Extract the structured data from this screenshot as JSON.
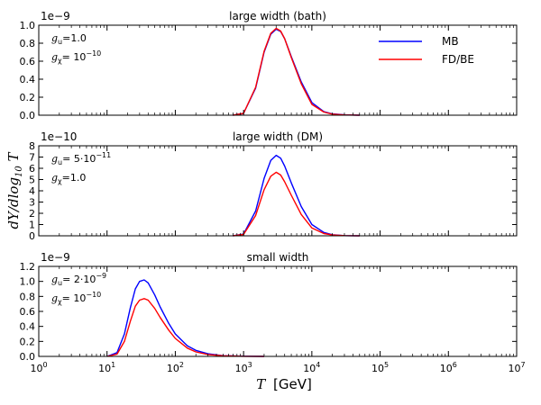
{
  "chart_data": {
    "type": "line",
    "shared_x": {
      "label_symbol": "T",
      "label_unit": "[GeV]",
      "scale": "log",
      "xlim": [
        1,
        10000000
      ],
      "tick_values": [
        1,
        10,
        100,
        1000,
        10000,
        100000,
        1000000,
        10000000
      ],
      "tick_labels": [
        "10^0",
        "10^1",
        "10^2",
        "10^3",
        "10^4",
        "10^5",
        "10^6",
        "10^7"
      ]
    },
    "shared_ylabel": "dY/dlog10 T",
    "legend": {
      "placement": "top-right (top panel)",
      "entries": [
        {
          "name": "MB",
          "color": "#0000ff"
        },
        {
          "name": "FD/BE",
          "color": "#ff0000"
        }
      ]
    },
    "panels": [
      {
        "title": "large width (bath)",
        "scale_label": "1e−9",
        "ylim": [
          0.0,
          1.0
        ],
        "yticks": [
          "0.0",
          "0.2",
          "0.4",
          "0.6",
          "0.8",
          "1.0"
        ],
        "params": [
          {
            "sym": "g",
            "sub": "u",
            "eq": "=1.0"
          },
          {
            "sym": "g",
            "sub": "χ",
            "eq": "= 10",
            "sup": "−10"
          }
        ],
        "series": [
          {
            "name": "MB",
            "color": "#0000ff",
            "x": [
              700,
              1000,
              1500,
              2000,
              2500,
              3000,
              3500,
              4000,
              5000,
              7000,
              10000,
              15000,
              20000,
              30000,
              50000
            ],
            "y": [
              0.0,
              0.02,
              0.3,
              0.7,
              0.9,
              0.955,
              0.93,
              0.85,
              0.65,
              0.37,
              0.14,
              0.04,
              0.015,
              0.004,
              0.0
            ]
          },
          {
            "name": "FD/BE",
            "color": "#ff0000",
            "x": [
              700,
              1000,
              1500,
              2000,
              2500,
              3000,
              3500,
              4000,
              5000,
              7000,
              10000,
              15000,
              20000,
              30000,
              50000
            ],
            "y": [
              0.0,
              0.02,
              0.31,
              0.71,
              0.91,
              0.965,
              0.935,
              0.85,
              0.64,
              0.35,
              0.12,
              0.035,
              0.012,
              0.003,
              0.0
            ]
          }
        ]
      },
      {
        "title": "large width (DM)",
        "scale_label": "1e−10",
        "ylim": [
          0,
          8
        ],
        "yticks": [
          "0",
          "1",
          "2",
          "3",
          "4",
          "5",
          "6",
          "7",
          "8"
        ],
        "params": [
          {
            "sym": "g",
            "sub": "u",
            "eq": "= 5·10",
            "sup": "−11"
          },
          {
            "sym": "g",
            "sub": "χ",
            "eq": "=1.0"
          }
        ],
        "series": [
          {
            "name": "MB",
            "color": "#0000ff",
            "x": [
              700,
              1000,
              1500,
              2000,
              2500,
              3000,
              3500,
              4000,
              5000,
              7000,
              10000,
              15000,
              20000,
              30000,
              50000
            ],
            "y": [
              0.0,
              0.15,
              2.2,
              5.1,
              6.7,
              7.15,
              6.9,
              6.2,
              4.7,
              2.6,
              1.0,
              0.3,
              0.1,
              0.02,
              0.0
            ]
          },
          {
            "name": "FD/BE",
            "color": "#ff0000",
            "x": [
              700,
              1000,
              1500,
              2000,
              2500,
              3000,
              3500,
              4000,
              5000,
              7000,
              10000,
              15000,
              20000,
              30000,
              50000
            ],
            "y": [
              0.0,
              0.12,
              1.8,
              4.1,
              5.3,
              5.65,
              5.4,
              4.8,
              3.6,
              1.9,
              0.7,
              0.2,
              0.07,
              0.015,
              0.0
            ]
          }
        ]
      },
      {
        "title": "small width",
        "scale_label": "1e−9",
        "ylim": [
          0.0,
          1.2
        ],
        "yticks": [
          "0.0",
          "0.2",
          "0.4",
          "0.6",
          "0.8",
          "1.0",
          "1.2"
        ],
        "params": [
          {
            "sym": "g",
            "sub": "u",
            "eq": "= 2·10",
            "sup": "−9"
          },
          {
            "sym": "g",
            "sub": "χ",
            "eq": "= 10",
            "sup": "−10"
          }
        ],
        "series": [
          {
            "name": "MB",
            "color": "#0000ff",
            "x": [
              10,
              14,
              18,
              22,
              26,
              30,
              35,
              40,
              50,
              60,
              80,
              100,
              150,
              200,
              300,
              500,
              1000,
              2000
            ],
            "y": [
              0.0,
              0.05,
              0.3,
              0.65,
              0.9,
              1.0,
              1.02,
              0.98,
              0.82,
              0.66,
              0.44,
              0.3,
              0.14,
              0.08,
              0.035,
              0.01,
              0.002,
              0.0
            ]
          },
          {
            "name": "FD/BE",
            "color": "#ff0000",
            "x": [
              10,
              14,
              18,
              22,
              26,
              30,
              35,
              40,
              50,
              60,
              80,
              100,
              150,
              200,
              300,
              500,
              1000,
              2000
            ],
            "y": [
              0.0,
              0.03,
              0.2,
              0.47,
              0.67,
              0.75,
              0.77,
              0.75,
              0.64,
              0.52,
              0.35,
              0.24,
              0.11,
              0.06,
              0.025,
              0.008,
              0.001,
              0.0
            ]
          }
        ]
      }
    ]
  }
}
